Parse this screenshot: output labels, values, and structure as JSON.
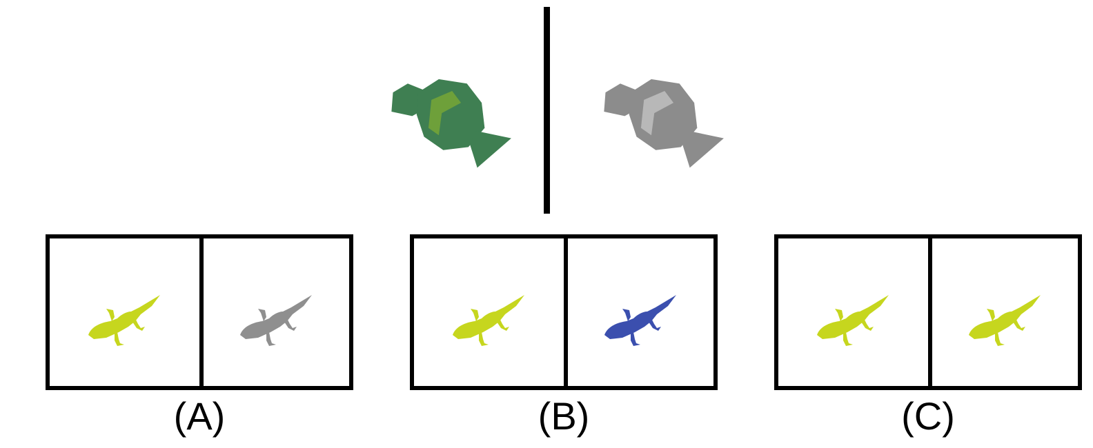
{
  "reference": {
    "left_color": "#3f7f52",
    "left_accent": "#6ea03a",
    "right_color": "#8c8c8c",
    "right_accent": "#b8b8b8"
  },
  "options": [
    {
      "label": "(A)",
      "left_color": "#c6d61e",
      "right_color": "#8f8f8f"
    },
    {
      "label": "(B)",
      "left_color": "#c6d61e",
      "right_color": "#3b4fae"
    },
    {
      "label": "(C)",
      "left_color": "#c6d61e",
      "right_color": "#c6d61e"
    }
  ]
}
